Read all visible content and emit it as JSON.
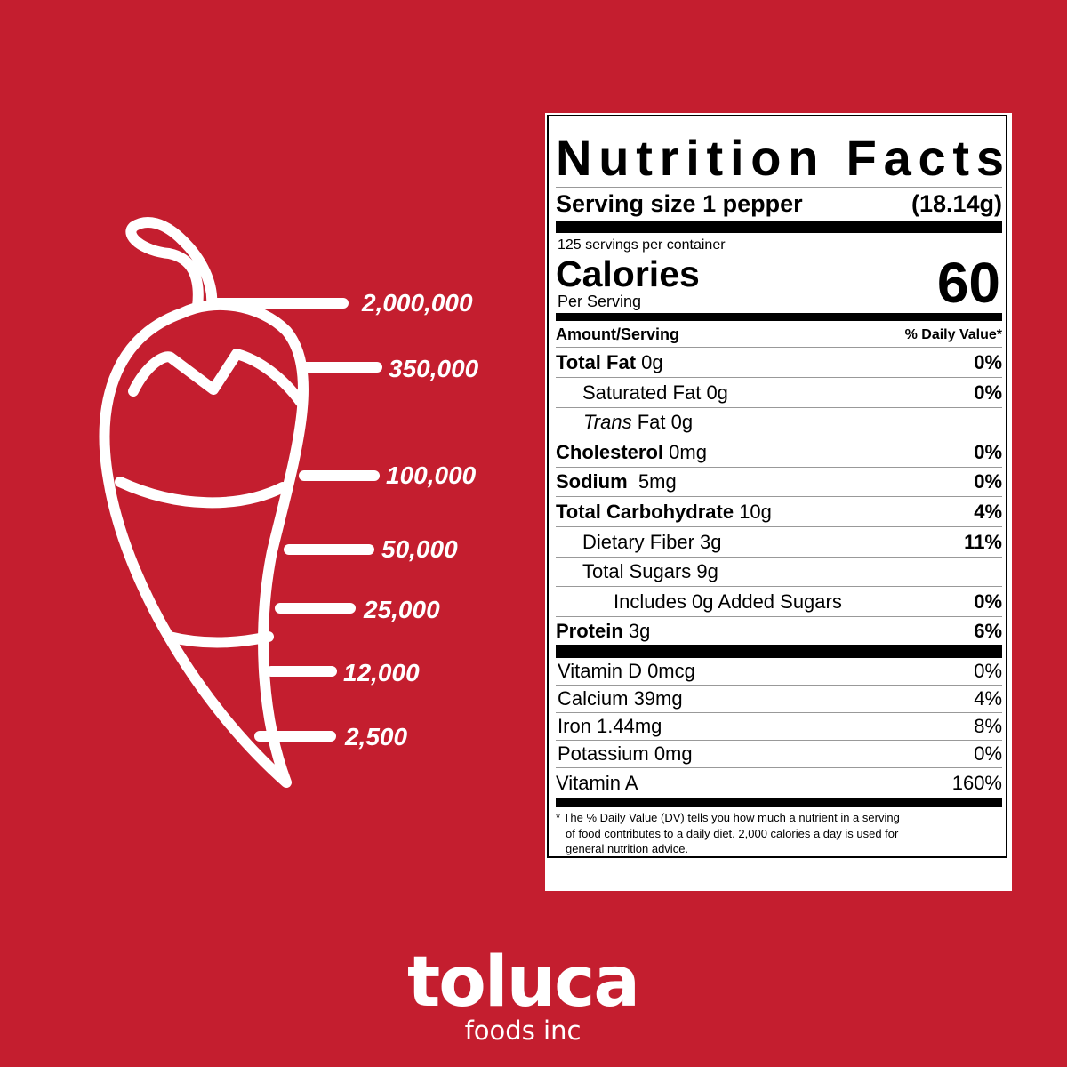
{
  "scale_labels": [
    "2,000,000",
    "350,000",
    "100,000",
    "50,000",
    "25,000",
    "12,000",
    "2,500"
  ],
  "nutrition": {
    "title": "Nutrition Facts",
    "serving_size": "Serving size 1 pepper",
    "serving_weight": "(18.14g)",
    "servings": "125 servings per container",
    "calories_label": "Calories",
    "per_serving": "Per Serving",
    "calories": "60",
    "amount_header": "Amount/Serving",
    "dv_header": "% Daily Value*",
    "rows": [
      {
        "name": "Total Fat",
        "amount": "0g",
        "dv": "0%"
      },
      {
        "name": "Saturated Fat",
        "amount": "0g",
        "dv": "0%"
      },
      {
        "name_italic": "Trans",
        "name": "Fat",
        "amount": "0g"
      },
      {
        "name": "Cholesterol",
        "amount": "0mg",
        "dv": "0%"
      },
      {
        "name": "Sodium",
        "amount": "5mg",
        "dv": "0%"
      },
      {
        "name": "Total Carbohydrate",
        "amount": "10g",
        "dv": "4%"
      },
      {
        "name": "Dietary Fiber",
        "amount": "3g",
        "dv": "11%"
      },
      {
        "name": "Total Sugars",
        "amount": "9g"
      },
      {
        "name": "Includes 0g Added Sugars",
        "dv": "0%"
      },
      {
        "name": "Protein",
        "amount": "3g",
        "dv": "6%"
      }
    ],
    "vitamins": [
      {
        "name": "Vitamin D 0mcg",
        "dv": "0%"
      },
      {
        "name": "Calcium 39mg",
        "dv": "4%"
      },
      {
        "name": "Iron 1.44mg",
        "dv": "8%"
      },
      {
        "name": "Potassium 0mg",
        "dv": "0%"
      },
      {
        "name": "Vitamin A",
        "dv": "160%"
      }
    ],
    "footnote": "* The % Daily Value (DV) tells you how much a nutrient in a serving of food contributes to a daily diet. 2,000 calories a day is used for general nutrition advice."
  },
  "brand": {
    "name": "toluca",
    "tagline": "foods inc"
  }
}
